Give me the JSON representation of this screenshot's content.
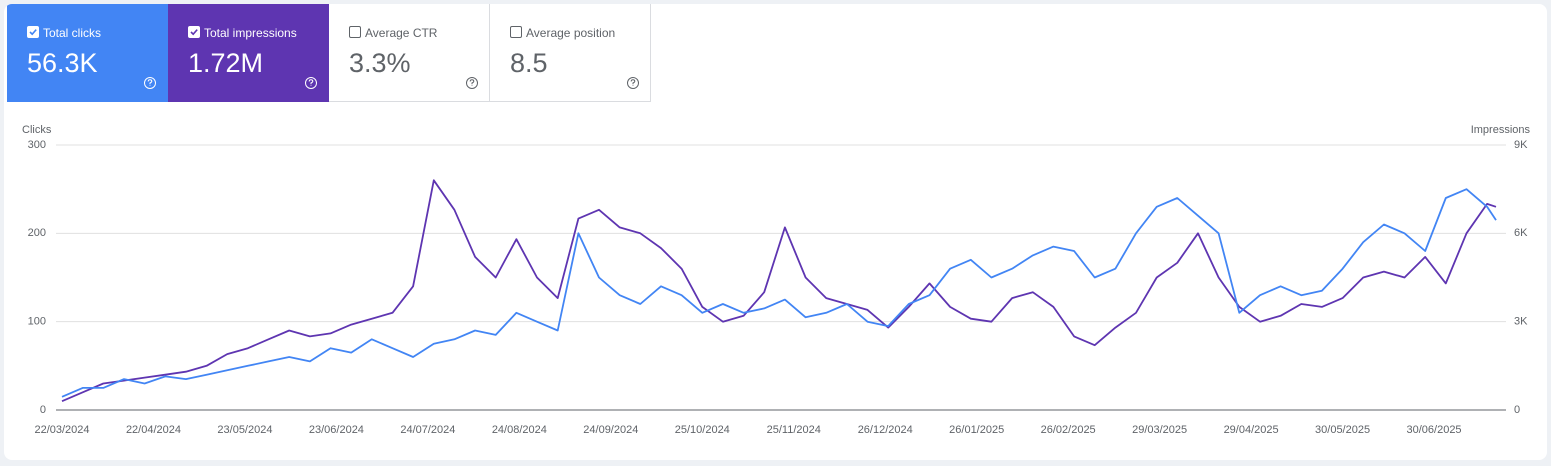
{
  "cards": [
    {
      "label": "Total clicks",
      "value": "56.3K",
      "checked": true,
      "color": "#4285f4"
    },
    {
      "label": "Total impressions",
      "value": "1.72M",
      "checked": true,
      "color": "#5e35b1"
    },
    {
      "label": "Average CTR",
      "value": "3.3%",
      "checked": false
    },
    {
      "label": "Average position",
      "value": "8.5",
      "checked": false
    }
  ],
  "chart_data": {
    "type": "line",
    "y_label": "Clicks",
    "y2_label": "Impressions",
    "x": [
      "22/03/2024",
      "29/03/2024",
      "05/04/2024",
      "12/04/2024",
      "19/04/2024",
      "26/04/2024",
      "03/05/2024",
      "10/05/2024",
      "17/05/2024",
      "24/05/2024",
      "31/05/2024",
      "07/06/2024",
      "14/06/2024",
      "21/06/2024",
      "28/06/2024",
      "05/07/2024",
      "12/07/2024",
      "19/07/2024",
      "26/07/2024",
      "02/08/2024",
      "09/08/2024",
      "16/08/2024",
      "23/08/2024",
      "30/08/2024",
      "06/09/2024",
      "13/09/2024",
      "20/09/2024",
      "27/09/2024",
      "04/10/2024",
      "11/10/2024",
      "18/10/2024",
      "25/10/2024",
      "01/11/2024",
      "08/11/2024",
      "15/11/2024",
      "22/11/2024",
      "29/11/2024",
      "06/12/2024",
      "13/12/2024",
      "20/12/2024",
      "27/12/2024",
      "03/01/2025",
      "10/01/2025",
      "17/01/2025",
      "24/01/2025",
      "31/01/2025",
      "07/02/2025",
      "14/02/2025",
      "21/02/2025",
      "28/02/2025",
      "07/03/2025",
      "14/03/2025",
      "21/03/2025",
      "28/03/2025",
      "04/04/2025",
      "11/04/2025",
      "18/04/2025",
      "25/04/2025",
      "02/05/2025",
      "09/05/2025",
      "16/05/2025",
      "23/05/2025",
      "30/05/2025",
      "06/06/2025",
      "13/06/2025",
      "20/06/2025",
      "27/06/2025",
      "04/07/2025",
      "11/07/2025",
      "18/07/2025",
      "21/07/2025"
    ],
    "xlim": [
      "22/03/2024",
      "21/07/2025"
    ],
    "xticks": [
      "22/03/2024",
      "22/04/2024",
      "23/05/2024",
      "23/06/2024",
      "24/07/2024",
      "24/08/2024",
      "24/09/2024",
      "25/10/2024",
      "25/11/2024",
      "26/12/2024",
      "26/01/2025",
      "26/02/2025",
      "29/03/2025",
      "29/04/2025",
      "30/05/2025",
      "30/06/2025"
    ],
    "ylim": [
      0,
      300
    ],
    "yticks": [
      0,
      100,
      200,
      300
    ],
    "y2lim": [
      0,
      9000
    ],
    "y2ticks": [
      0,
      {
        "value": 3000,
        "label": "3K"
      },
      {
        "value": 6000,
        "label": "6K"
      },
      {
        "value": 9000,
        "label": "9K"
      }
    ],
    "grid": true,
    "series": [
      {
        "name": "Total impressions",
        "color": "#5e35b1",
        "axis": "y2",
        "values": [
          300,
          600,
          900,
          1000,
          1100,
          1200,
          1300,
          1500,
          1900,
          2100,
          2400,
          2700,
          2500,
          2600,
          2900,
          3100,
          3300,
          4200,
          7800,
          6800,
          5200,
          4500,
          5800,
          4500,
          3800,
          6500,
          6800,
          6200,
          6000,
          5500,
          4800,
          3500,
          3000,
          3200,
          4000,
          6200,
          4500,
          3800,
          3600,
          3400,
          2800,
          3500,
          4300,
          3500,
          3100,
          3000,
          3800,
          4000,
          3500,
          2500,
          2200,
          2800,
          3300,
          4500,
          5000,
          6000,
          4500,
          3500,
          3000,
          3200,
          3600,
          3500,
          3800,
          4500,
          4700,
          4500,
          5200,
          4300,
          6000,
          7000,
          6900
        ]
      },
      {
        "name": "Total clicks",
        "color": "#4285f4",
        "values": [
          15,
          25,
          25,
          35,
          30,
          38,
          35,
          40,
          45,
          50,
          55,
          60,
          55,
          70,
          65,
          80,
          70,
          60,
          75,
          80,
          90,
          85,
          110,
          100,
          90,
          200,
          150,
          130,
          120,
          140,
          130,
          110,
          120,
          110,
          115,
          125,
          105,
          110,
          120,
          100,
          95,
          120,
          130,
          160,
          170,
          150,
          160,
          175,
          185,
          180,
          150,
          160,
          200,
          230,
          240,
          220,
          200,
          110,
          130,
          140,
          130,
          135,
          160,
          190,
          210,
          200,
          180,
          240,
          250,
          230,
          215
        ]
      }
    ]
  }
}
